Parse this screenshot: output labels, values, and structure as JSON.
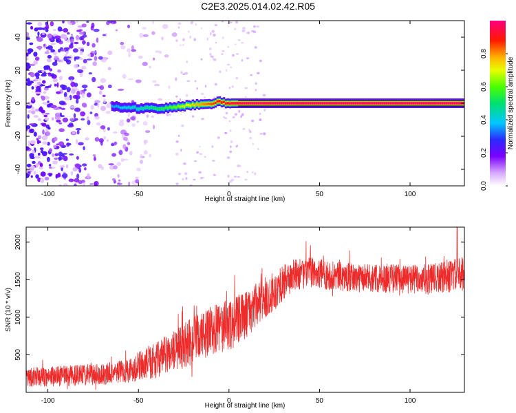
{
  "title": "C2E3.2025.014.02.42.R05",
  "colors": {
    "snr_line": "#ee2b2b",
    "frame": "#000000",
    "band_outline": "#111111"
  },
  "chart_data": [
    {
      "type": "heatmap",
      "title": "C2E3.2025.014.02.42.R05",
      "xlabel": "Height of straight line (km)",
      "ylabel": "Frequency (Hz)",
      "xlim": [
        -112,
        130
      ],
      "ylim": [
        -50,
        50
      ],
      "x_ticks": [
        -100,
        -50,
        0,
        50,
        100
      ],
      "y_ticks": [
        -40,
        -20,
        0,
        20,
        40
      ],
      "colorbar": {
        "label": "Normalized spectral amplitude",
        "range": [
          0,
          1
        ],
        "ticks": [
          "0.0",
          "0.2",
          "0.4",
          "0.6",
          "0.8"
        ],
        "tick_values": [
          0,
          0.2,
          0.4,
          0.6,
          0.8
        ],
        "colormap": "rainbow white-violet-blue-cyan-green-yellow-red-magenta"
      },
      "noise_region_km": [
        -112,
        -30
      ],
      "signal_band": {
        "x_start_km": -65,
        "frequency_hz_by_height": [
          {
            "x": -65,
            "y": -2
          },
          {
            "x": -50,
            "y": -3
          },
          {
            "x": -35,
            "y": -3
          },
          {
            "x": -20,
            "y": -1
          },
          {
            "x": -10,
            "y": 0
          },
          {
            "x": -5,
            "y": 1
          },
          {
            "x": 0,
            "y": 0
          },
          {
            "x": 130,
            "y": 0
          }
        ],
        "amplitude_by_height": [
          {
            "x": -65,
            "v": 0.35
          },
          {
            "x": -50,
            "v": 0.45
          },
          {
            "x": -35,
            "v": 0.55
          },
          {
            "x": -20,
            "v": 0.75
          },
          {
            "x": -5,
            "v": 0.9
          },
          {
            "x": 10,
            "v": 0.97
          },
          {
            "x": 130,
            "v": 0.97
          }
        ]
      }
    },
    {
      "type": "line",
      "xlabel": "Height of straight line (km)",
      "ylabel": "SNR (10 * v/v)",
      "xlim": [
        -112,
        130
      ],
      "ylim": [
        0,
        2200
      ],
      "x_ticks": [
        -100,
        -50,
        0,
        50,
        100
      ],
      "y_ticks": [
        500,
        1000,
        1500,
        2000
      ],
      "series": [
        {
          "trend": [
            {
              "x": -112,
              "y": 200
            },
            {
              "x": -90,
              "y": 220
            },
            {
              "x": -70,
              "y": 240
            },
            {
              "x": -55,
              "y": 300
            },
            {
              "x": -40,
              "y": 430
            },
            {
              "x": -25,
              "y": 620
            },
            {
              "x": -15,
              "y": 750
            },
            {
              "x": -5,
              "y": 850
            },
            {
              "x": 5,
              "y": 950
            },
            {
              "x": 15,
              "y": 1150
            },
            {
              "x": 25,
              "y": 1350
            },
            {
              "x": 35,
              "y": 1550
            },
            {
              "x": 45,
              "y": 1600
            },
            {
              "x": 55,
              "y": 1560
            },
            {
              "x": 70,
              "y": 1520
            },
            {
              "x": 90,
              "y": 1520
            },
            {
              "x": 110,
              "y": 1500
            },
            {
              "x": 120,
              "y": 1530
            },
            {
              "x": 130,
              "y": 1600
            }
          ],
          "spread": [
            {
              "x": -112,
              "y": 150
            },
            {
              "x": -60,
              "y": 180
            },
            {
              "x": -40,
              "y": 280
            },
            {
              "x": -20,
              "y": 380
            },
            {
              "x": 0,
              "y": 420
            },
            {
              "x": 20,
              "y": 330
            },
            {
              "x": 40,
              "y": 240
            },
            {
              "x": 80,
              "y": 220
            },
            {
              "x": 130,
              "y": 260
            }
          ],
          "peak": {
            "x": 126,
            "y": 2200
          }
        }
      ]
    }
  ]
}
